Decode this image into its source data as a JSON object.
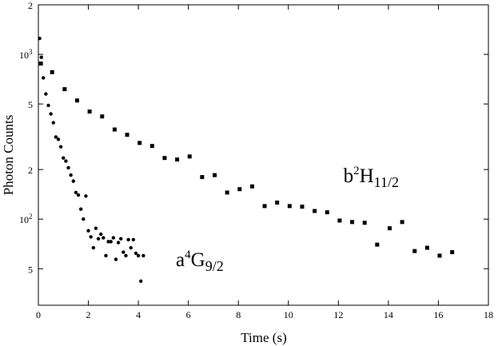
{
  "chart_data": {
    "type": "scatter",
    "title": "",
    "xlabel": "Time (s)",
    "ylabel": "Photon Counts",
    "xlim": [
      0,
      18
    ],
    "ylim": [
      30,
      2000
    ],
    "y_scale": "log",
    "grid": false,
    "legend": "none",
    "x_ticks": [
      0,
      2,
      4,
      6,
      8,
      10,
      12,
      14,
      16,
      18
    ],
    "x_tick_labels": [
      "0",
      "2",
      "4",
      "6",
      "8",
      "10",
      "12",
      "14",
      "16",
      "18"
    ],
    "y_ticks": [
      {
        "value": 50,
        "base": "5",
        "exp": ""
      },
      {
        "value": 100,
        "base": "10",
        "exp": "2"
      },
      {
        "value": 200,
        "base": "2",
        "exp": ""
      },
      {
        "value": 500,
        "base": "5",
        "exp": ""
      },
      {
        "value": 1000,
        "base": "10",
        "exp": "3"
      },
      {
        "value": 2000,
        "base": "2",
        "exp": ""
      }
    ],
    "annotations": [
      {
        "base": "b",
        "sup": "2",
        "main": "H",
        "sub": "11/2",
        "x": 12.2,
        "y": 168
      },
      {
        "base": "a",
        "sup": "4",
        "main": "G",
        "sub": "9/2",
        "x": 5.5,
        "y": 52
      }
    ],
    "series": [
      {
        "marker": "circle",
        "x": [
          0.05,
          0.12,
          0.2,
          0.3,
          0.4,
          0.5,
          0.6,
          0.7,
          0.8,
          0.9,
          1.0,
          1.1,
          1.2,
          1.3,
          1.4,
          1.5,
          1.6,
          1.7,
          1.8,
          1.9,
          2.0,
          2.1,
          2.2,
          2.3,
          2.4,
          2.5,
          2.6,
          2.7,
          2.8,
          2.9,
          3.0,
          3.1,
          3.2,
          3.3,
          3.4,
          3.5,
          3.6,
          3.7,
          3.8,
          3.9,
          4.0,
          4.1,
          4.2
        ],
        "y": [
          1250,
          960,
          720,
          575,
          490,
          435,
          385,
          315,
          305,
          275,
          235,
          225,
          205,
          185,
          170,
          145,
          140,
          115,
          100,
          138,
          85,
          78,
          67,
          88,
          76,
          81,
          77,
          60,
          73,
          73,
          77,
          57,
          72,
          76,
          63,
          60,
          75,
          67,
          75,
          62,
          60,
          42,
          60
        ]
      },
      {
        "marker": "square",
        "x": [
          0.1,
          0.55,
          1.05,
          1.55,
          2.05,
          2.55,
          3.05,
          3.55,
          4.05,
          4.55,
          5.05,
          5.55,
          6.05,
          6.55,
          7.05,
          7.55,
          8.05,
          8.55,
          9.05,
          9.55,
          10.05,
          10.55,
          11.05,
          11.55,
          12.05,
          12.55,
          13.05,
          13.55,
          14.05,
          14.55,
          15.05,
          15.55,
          16.05,
          16.55
        ],
        "y": [
          880,
          780,
          615,
          525,
          450,
          420,
          350,
          325,
          290,
          278,
          235,
          230,
          240,
          180,
          185,
          145,
          152,
          158,
          120,
          126,
          120,
          119,
          112,
          110,
          98,
          96,
          95,
          70,
          88,
          96,
          64,
          67,
          60,
          63
        ]
      }
    ]
  }
}
